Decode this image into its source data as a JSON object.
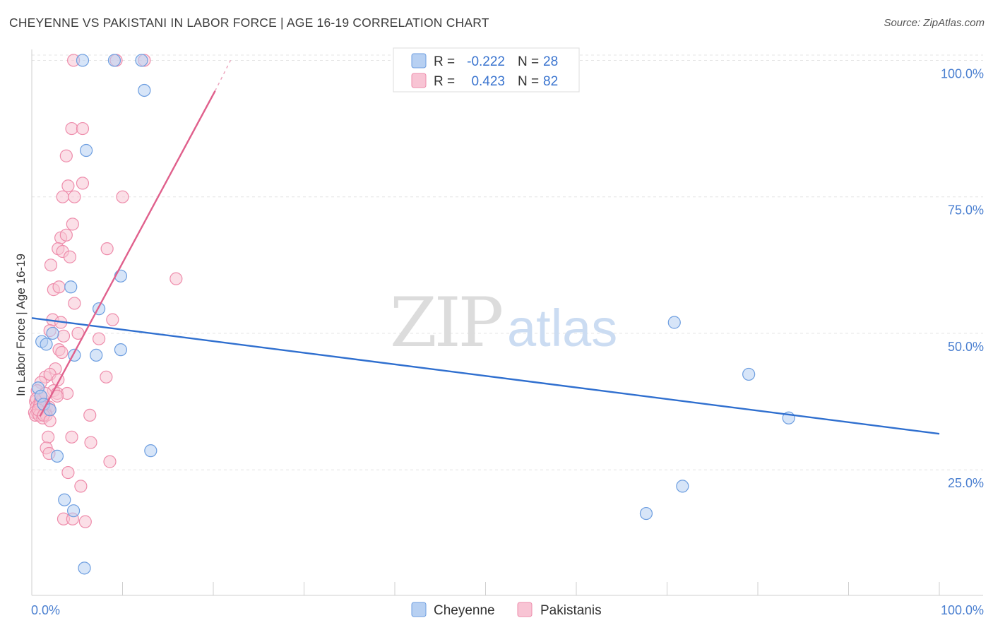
{
  "title": "CHEYENNE VS PAKISTANI IN LABOR FORCE | AGE 16-19 CORRELATION CHART",
  "source": "Source: ZipAtlas.com",
  "watermark": {
    "zip": "ZIP",
    "atlas": "atlas"
  },
  "colors": {
    "cheyenne_fill": "#b7d0f2",
    "cheyenne_stroke": "#6d9ee0",
    "cheyenne_line": "#2f6fcf",
    "pakistani_fill": "#f8c4d4",
    "pakistani_stroke": "#ee8cab",
    "pakistani_line": "#e0608c",
    "tick_label": "#4a7fd0"
  },
  "legend": {
    "rows": [
      {
        "r_label": "R =",
        "r_value": "-0.222",
        "n_label": "N =",
        "n_value": "28"
      },
      {
        "r_label": "R =",
        "r_value": "0.423",
        "n_label": "N =",
        "n_value": "82"
      }
    ]
  },
  "chart_data": {
    "type": "scatter",
    "title": "CHEYENNE VS PAKISTANI IN LABOR FORCE | AGE 16-19 CORRELATION CHART",
    "xlabel": "",
    "ylabel": "In Labor Force | Age 16-19",
    "xlim": [
      0,
      100
    ],
    "ylim": [
      2,
      102
    ],
    "x_tick_labels": [
      "0.0%",
      "100.0%"
    ],
    "y_ticks": [
      25,
      50,
      75,
      100
    ],
    "y_tick_labels": [
      "25.0%",
      "50.0%",
      "75.0%",
      "100.0%"
    ],
    "grid": true,
    "legend_position": "top-center",
    "series": [
      {
        "name": "Cheyenne",
        "points": [
          [
            5.6,
            100
          ],
          [
            9.1,
            100
          ],
          [
            12.1,
            100
          ],
          [
            12.4,
            94.5
          ],
          [
            6.0,
            83.5
          ],
          [
            9.8,
            60.5
          ],
          [
            4.3,
            58.5
          ],
          [
            7.4,
            54.5
          ],
          [
            1.1,
            48.5
          ],
          [
            1.6,
            48.0
          ],
          [
            2.3,
            50.0
          ],
          [
            4.7,
            46.0
          ],
          [
            7.1,
            46.0
          ],
          [
            9.8,
            47.0
          ],
          [
            0.7,
            40.0
          ],
          [
            1.0,
            38.5
          ],
          [
            1.3,
            37.0
          ],
          [
            2.0,
            36.0
          ],
          [
            2.8,
            27.5
          ],
          [
            13.1,
            28.5
          ],
          [
            3.6,
            19.5
          ],
          [
            4.6,
            17.5
          ],
          [
            5.8,
            7.0
          ],
          [
            67.7,
            17.0
          ],
          [
            71.7,
            22.0
          ],
          [
            70.8,
            52.0
          ],
          [
            79.0,
            42.5
          ],
          [
            83.4,
            34.5
          ]
        ],
        "trend": {
          "x": [
            0,
            100
          ],
          "y": [
            52.8,
            31.6
          ]
        }
      },
      {
        "name": "Pakistani",
        "points": [
          [
            4.6,
            100
          ],
          [
            9.3,
            100
          ],
          [
            12.4,
            100
          ],
          [
            4.4,
            87.5
          ],
          [
            5.6,
            87.5
          ],
          [
            3.8,
            82.5
          ],
          [
            4.0,
            77.0
          ],
          [
            5.6,
            77.5
          ],
          [
            3.4,
            75.0
          ],
          [
            4.7,
            75.0
          ],
          [
            10.0,
            75.0
          ],
          [
            4.5,
            70.0
          ],
          [
            3.2,
            67.5
          ],
          [
            3.8,
            68.0
          ],
          [
            2.9,
            65.5
          ],
          [
            3.4,
            65.0
          ],
          [
            8.3,
            65.5
          ],
          [
            4.2,
            64.0
          ],
          [
            2.1,
            62.5
          ],
          [
            15.9,
            60.0
          ],
          [
            2.4,
            58.0
          ],
          [
            3.0,
            58.5
          ],
          [
            4.7,
            55.5
          ],
          [
            2.3,
            52.5
          ],
          [
            3.2,
            52.0
          ],
          [
            8.9,
            52.5
          ],
          [
            2.0,
            50.5
          ],
          [
            3.5,
            49.5
          ],
          [
            5.1,
            50.0
          ],
          [
            7.4,
            49.0
          ],
          [
            3.0,
            47.0
          ],
          [
            3.3,
            46.5
          ],
          [
            2.6,
            43.5
          ],
          [
            1.5,
            42.0
          ],
          [
            2.0,
            42.5
          ],
          [
            2.9,
            41.5
          ],
          [
            8.2,
            42.0
          ],
          [
            1.0,
            41.0
          ],
          [
            0.6,
            39.5
          ],
          [
            2.4,
            39.5
          ],
          [
            2.8,
            39.0
          ],
          [
            3.9,
            39.0
          ],
          [
            2.8,
            38.5
          ],
          [
            0.4,
            37.5
          ],
          [
            0.5,
            38.0
          ],
          [
            0.9,
            37.5
          ],
          [
            1.1,
            37.5
          ],
          [
            1.2,
            38.0
          ],
          [
            1.4,
            37.0
          ],
          [
            0.5,
            36.5
          ],
          [
            0.8,
            36.5
          ],
          [
            1.0,
            36.0
          ],
          [
            1.3,
            36.5
          ],
          [
            1.6,
            36.5
          ],
          [
            1.9,
            36.5
          ],
          [
            0.3,
            35.5
          ],
          [
            0.6,
            35.5
          ],
          [
            1.0,
            35.5
          ],
          [
            1.5,
            35.5
          ],
          [
            2.0,
            36.0
          ],
          [
            0.4,
            35.0
          ],
          [
            0.8,
            35.0
          ],
          [
            1.2,
            34.5
          ],
          [
            1.6,
            35.0
          ],
          [
            0.9,
            37.0
          ],
          [
            1.0,
            38.5
          ],
          [
            1.5,
            39.0
          ],
          [
            0.7,
            36.0
          ],
          [
            1.3,
            35.0
          ],
          [
            2.0,
            34.0
          ],
          [
            6.4,
            35.0
          ],
          [
            1.8,
            31.0
          ],
          [
            4.4,
            31.0
          ],
          [
            1.6,
            29.0
          ],
          [
            6.5,
            30.0
          ],
          [
            1.9,
            28.0
          ],
          [
            8.6,
            26.5
          ],
          [
            4.0,
            24.5
          ],
          [
            5.4,
            22.0
          ],
          [
            3.5,
            16.0
          ],
          [
            4.5,
            16.0
          ],
          [
            5.9,
            15.5
          ]
        ],
        "trend": {
          "x": [
            0.9,
            20.2
          ],
          "y": [
            34.8,
            94.4
          ]
        },
        "trend_dashed": {
          "x": [
            20.2,
            21.9
          ],
          "y": [
            94.4,
            100
          ]
        }
      }
    ]
  },
  "bottom_legend": [
    "Cheyenne",
    "Pakistanis"
  ]
}
